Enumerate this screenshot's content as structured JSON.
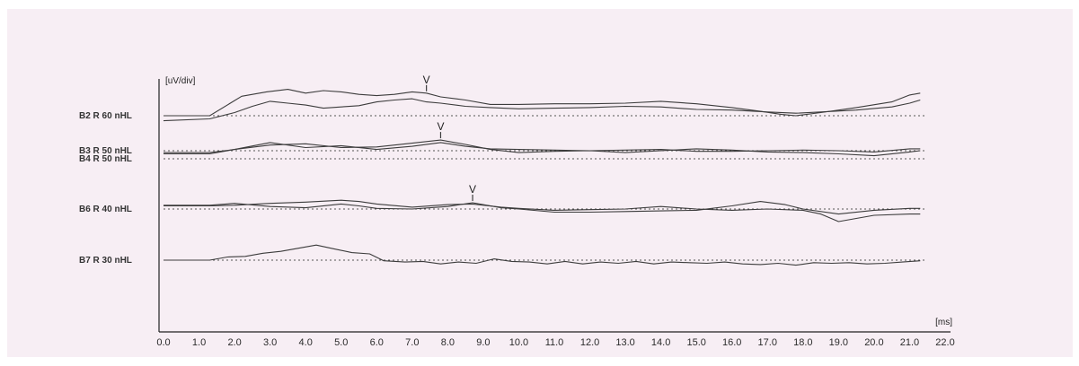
{
  "colors": {
    "background": "#f7eef4",
    "trace": "#3c3c3c",
    "baseline": "#555555",
    "axis": "#222222"
  },
  "chart_data": {
    "type": "line",
    "title": "",
    "ylabel": "[uV/div]",
    "xlabel": "[ms]",
    "xlim": [
      0,
      22
    ],
    "x_ticks": [
      "0.0",
      "1.0",
      "2.0",
      "3.0",
      "4.0",
      "5.0",
      "6.0",
      "7.0",
      "8.0",
      "9.0",
      "10.0",
      "11.0",
      "12.0",
      "13.0",
      "14.0",
      "15.0",
      "16.0",
      "17.0",
      "18.0",
      "19.0",
      "20.0",
      "21.0",
      "22.0"
    ],
    "grid": false,
    "baseline_style": "dotted",
    "traces": [
      {
        "label": "B2 R 60 nHL",
        "peak_label": "V",
        "peak_latency_ms": 7.4,
        "series": [
          {
            "x": [
              0,
              1.3,
              2.2,
              2.9,
              3.5,
              4.0,
              4.5,
              5.0,
              5.5,
              6.0,
              6.5,
              7.0,
              7.4,
              7.8,
              8.5,
              9.2,
              10.0,
              11.0,
              12.0,
              13.0,
              14.0,
              15.0,
              16.0,
              16.8,
              17.4,
              17.8,
              18.5,
              19.5,
              20.5,
              21.0,
              21.3
            ],
            "y": [
              0,
              0,
              3.1,
              3.8,
              4.2,
              3.6,
              4.0,
              3.8,
              3.4,
              3.2,
              3.4,
              3.8,
              3.6,
              3.0,
              2.5,
              1.8,
              1.8,
              1.9,
              1.9,
              2.0,
              2.3,
              1.9,
              1.3,
              0.7,
              0.2,
              0,
              0.5,
              1.3,
              2.2,
              3.3,
              3.6
            ]
          },
          {
            "x": [
              0,
              1.3,
              2.0,
              2.5,
              3.0,
              3.5,
              4.0,
              4.5,
              5.0,
              5.5,
              6.0,
              6.5,
              7.0,
              7.4,
              7.8,
              8.5,
              9.2,
              10.0,
              11.0,
              12.0,
              13.0,
              14.0,
              15.0,
              16.0,
              17.0,
              17.8,
              18.5,
              19.5,
              20.5,
              21.0,
              21.3
            ],
            "y": [
              -0.8,
              -0.5,
              0.5,
              1.5,
              2.3,
              2.0,
              1.7,
              1.2,
              1.4,
              1.6,
              2.2,
              2.5,
              2.7,
              2.2,
              2.0,
              1.5,
              1.3,
              1.1,
              1.2,
              1.3,
              1.5,
              1.4,
              1.0,
              0.9,
              0.6,
              0.4,
              0.6,
              0.9,
              1.4,
              2.0,
              2.5
            ]
          }
        ]
      },
      {
        "label": "B3 R 50 nHL",
        "peak_label": "V",
        "peak_latency_ms": 7.8,
        "series": [
          {
            "x": [
              0,
              1.3,
              2.0,
              3.0,
              4.0,
              5.0,
              6.0,
              7.0,
              7.8,
              8.5,
              9.2,
              10.0,
              11.0,
              12.0,
              13.0,
              14.0,
              15.0,
              16.0,
              17.0,
              18.0,
              19.0,
              20.0,
              21.0,
              21.3
            ],
            "y": [
              -0.5,
              -0.5,
              0.2,
              1.3,
              0.5,
              0.8,
              0.2,
              0.7,
              1.3,
              0.7,
              0.3,
              0.2,
              0.1,
              0,
              0.1,
              0.2,
              -0.1,
              -0.1,
              0,
              0.1,
              0,
              -0.2,
              0.3,
              0.3
            ]
          },
          {
            "x": [
              0,
              1.3,
              2.0,
              3.0,
              4.0,
              5.0,
              6.0,
              7.0,
              7.8,
              8.5,
              9.2,
              10.0,
              11.0,
              12.0,
              13.0,
              14.0,
              15.0,
              16.0,
              17.0,
              18.0,
              19.0,
              20.0,
              21.0,
              21.3
            ],
            "y": [
              -0.3,
              -0.3,
              0.2,
              0.9,
              1.1,
              0.5,
              0.6,
              1.2,
              1.7,
              1.0,
              0.2,
              -0.3,
              -0.1,
              0,
              -0.3,
              0,
              0.3,
              0.1,
              -0.2,
              -0.3,
              -0.5,
              -0.8,
              -0.2,
              0
            ]
          }
        ]
      },
      {
        "label": "B4 R 50 nHL",
        "peak_label": "",
        "series": []
      },
      {
        "label": "B6 R 40 nHL",
        "peak_label": "V",
        "peak_latency_ms": 8.7,
        "series": [
          {
            "x": [
              0,
              1.3,
              2.0,
              3.0,
              4.0,
              5.0,
              5.5,
              6.0,
              7.0,
              8.0,
              8.7,
              9.5,
              10.0,
              11.0,
              12.0,
              13.0,
              14.0,
              15.0,
              16.0,
              16.8,
              17.5,
              18.0,
              19.0,
              20.0,
              21.0,
              21.3
            ],
            "y": [
              0.6,
              0.6,
              0.9,
              0.4,
              0.2,
              0.8,
              0.5,
              0.1,
              0,
              0.4,
              1.0,
              0.2,
              0,
              -0.5,
              -0.5,
              -0.4,
              -0.3,
              -0.2,
              0.5,
              1.2,
              0.7,
              0,
              -0.8,
              -0.2,
              0.1,
              0.1
            ]
          },
          {
            "x": [
              0,
              1.3,
              2.0,
              3.0,
              4.0,
              5.0,
              5.5,
              6.0,
              7.0,
              8.0,
              8.7,
              9.5,
              10.0,
              11.0,
              12.0,
              13.0,
              14.0,
              15.0,
              16.0,
              17.0,
              18.0,
              18.5,
              19.0,
              19.5,
              20.0,
              21.0,
              21.3
            ],
            "y": [
              0.5,
              0.5,
              0.6,
              0.9,
              1.1,
              1.4,
              1.2,
              0.8,
              0.3,
              0.7,
              0.8,
              0.3,
              0.1,
              -0.2,
              -0.1,
              0,
              0.4,
              0,
              -0.2,
              0,
              -0.2,
              -0.8,
              -2.0,
              -1.5,
              -1.0,
              -0.8,
              -0.8
            ]
          }
        ]
      },
      {
        "label": "B7 R 30 nHL",
        "peak_label": "",
        "series": [
          {
            "x": [
              0,
              1.3,
              1.8,
              2.3,
              2.8,
              3.3,
              3.8,
              4.3,
              4.8,
              5.3,
              5.8,
              6.2,
              6.8,
              7.3,
              7.8,
              8.3,
              8.8,
              9.3,
              9.8,
              10.3,
              10.8,
              11.3,
              11.8,
              12.3,
              12.8,
              13.3,
              13.8,
              14.3,
              14.8,
              15.3,
              15.8,
              16.3,
              16.8,
              17.3,
              17.8,
              18.3,
              18.8,
              19.3,
              19.8,
              20.3,
              20.8,
              21.3
            ],
            "y": [
              0,
              0,
              0.5,
              0.6,
              1.1,
              1.4,
              1.9,
              2.4,
              1.8,
              1.2,
              1.0,
              -0.1,
              -0.3,
              -0.2,
              -0.6,
              -0.3,
              -0.5,
              0.2,
              -0.2,
              -0.3,
              -0.6,
              -0.2,
              -0.6,
              -0.3,
              -0.5,
              -0.2,
              -0.6,
              -0.3,
              -0.4,
              -0.5,
              -0.3,
              -0.6,
              -0.7,
              -0.5,
              -0.8,
              -0.4,
              -0.5,
              -0.4,
              -0.6,
              -0.5,
              -0.3,
              -0.1
            ]
          }
        ]
      }
    ]
  }
}
